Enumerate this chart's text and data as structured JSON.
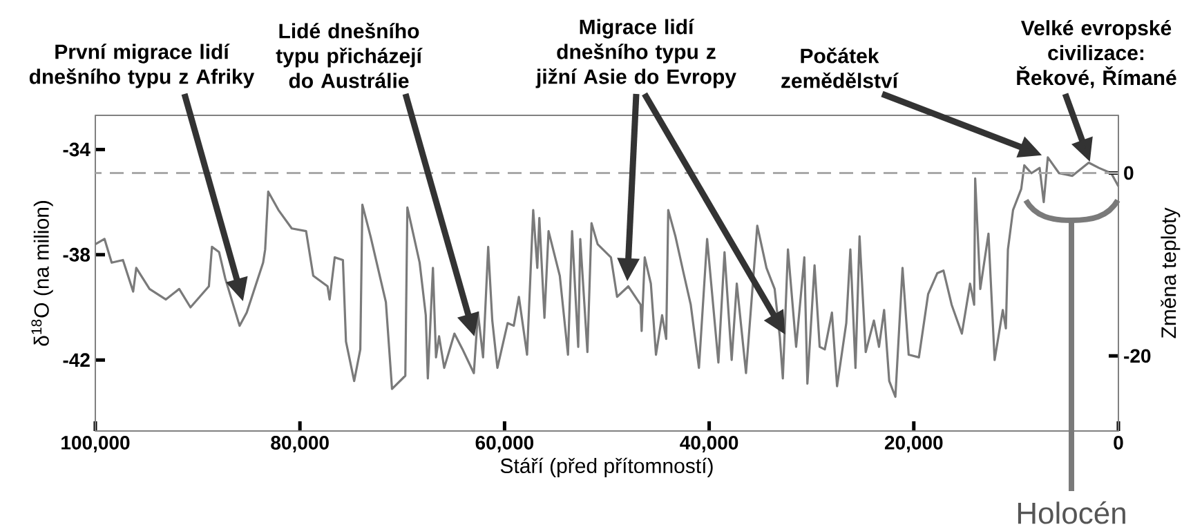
{
  "chart_data": {
    "type": "line",
    "xlabel": "Stáří (před přítomností)",
    "ylabel": "δ$^{18}$O (na milion)",
    "y2label": "Změna teploty",
    "xlim": [
      100000,
      0
    ],
    "xticks": [
      {
        "value": 100000,
        "label": "100,000"
      },
      {
        "value": 80000,
        "label": "80,000"
      },
      {
        "value": 60000,
        "label": "60,000"
      },
      {
        "value": 40000,
        "label": "40,000"
      },
      {
        "value": 20000,
        "label": "20,000"
      },
      0
    ],
    "ylim": [
      -44.7,
      -32.7
    ],
    "yticks": [
      -34,
      -38,
      -42
    ],
    "y2lim": [
      -28.2,
      6.3
    ],
    "y2ticks": [
      0,
      -20
    ],
    "x": [
      100000,
      99100,
      98400,
      97300,
      96300,
      96000,
      94700,
      93100,
      91800,
      90700,
      88900,
      88600,
      87900,
      87300,
      85900,
      85200,
      83600,
      83400,
      83100,
      82100,
      80800,
      79400,
      78700,
      77300,
      77100,
      76600,
      75800,
      75500,
      74700,
      74100,
      73900,
      73100,
      71600,
      71000,
      69700,
      69500,
      69100,
      68300,
      67700,
      67500,
      67000,
      66700,
      66400,
      65900,
      64900,
      64100,
      63000,
      62600,
      62100,
      61600,
      61200,
      60700,
      59700,
      59100,
      58600,
      57800,
      57200,
      56800,
      56600,
      56100,
      55700,
      54600,
      53800,
      53400,
      52800,
      52600,
      51900,
      51500,
      50900,
      49600,
      49000,
      47900,
      46700,
      46600,
      46300,
      45700,
      45200,
      44600,
      44200,
      44000,
      43300,
      42500,
      41800,
      41000,
      40200,
      39100,
      38500,
      37800,
      37300,
      36400,
      35300,
      34400,
      33600,
      33100,
      32800,
      32300,
      31500,
      30700,
      30400,
      29700,
      29200,
      28700,
      28000,
      27500,
      26600,
      26200,
      25700,
      25300,
      24700,
      23900,
      23400,
      22900,
      22400,
      21800,
      21100,
      20500,
      19500,
      18600,
      17700,
      17100,
      16300,
      15300,
      14500,
      14100,
      14000,
      13500,
      12700,
      12100,
      11300,
      11000,
      10800,
      10300,
      9500,
      9200,
      8500,
      7700,
      7300,
      6900,
      5800,
      4500,
      2900,
      1900,
      700,
      0
    ],
    "series": [
      {
        "color": "#7a7a7a",
        "values": [
          -37.6,
          -37.4,
          -38.3,
          -38.2,
          -39.4,
          -38.5,
          -39.3,
          -39.7,
          -39.3,
          -40.0,
          -39.2,
          -37.7,
          -37.9,
          -38.9,
          -40.7,
          -40.2,
          -38.3,
          -37.8,
          -35.6,
          -36.3,
          -37.0,
          -37.1,
          -38.8,
          -39.2,
          -39.7,
          -38.1,
          -38.2,
          -41.3,
          -42.8,
          -41.6,
          -36.1,
          -37.3,
          -39.8,
          -43.1,
          -42.6,
          -36.2,
          -36.9,
          -38.3,
          -40.3,
          -42.7,
          -38.5,
          -41.9,
          -41.1,
          -42.3,
          -41.0,
          -41.6,
          -42.5,
          -40.2,
          -41.9,
          -37.7,
          -40.5,
          -42.3,
          -40.6,
          -40.7,
          -39.6,
          -41.8,
          -36.3,
          -38.5,
          -36.6,
          -40.4,
          -37.1,
          -38.8,
          -41.8,
          -37.1,
          -41.5,
          -37.4,
          -41.7,
          -36.8,
          -37.6,
          -38.1,
          -39.6,
          -39.2,
          -39.9,
          -40.9,
          -38.1,
          -39.1,
          -41.8,
          -40.3,
          -41.2,
          -36.3,
          -37.3,
          -38.7,
          -39.9,
          -42.3,
          -37.4,
          -42.1,
          -37.9,
          -42.0,
          -39.1,
          -42.5,
          -36.9,
          -38.5,
          -39.3,
          -41.1,
          -42.7,
          -37.8,
          -41.5,
          -38.1,
          -42.9,
          -38.4,
          -41.5,
          -41.6,
          -40.2,
          -43.0,
          -40.6,
          -37.8,
          -42.3,
          -37.3,
          -41.7,
          -40.5,
          -41.5,
          -40.1,
          -42.8,
          -43.4,
          -38.5,
          -41.8,
          -41.9,
          -39.5,
          -38.7,
          -38.6,
          -39.9,
          -41.0,
          -39.1,
          -39.9,
          -35.1,
          -39.3,
          -37.2,
          -42.0,
          -40.1,
          -40.8,
          -37.8,
          -36.3,
          -35.5,
          -34.6,
          -34.9,
          -34.7,
          -36.0,
          -34.3,
          -34.9,
          -35.0,
          -34.5,
          -34.7,
          -34.9,
          -35.4
        ]
      }
    ],
    "ref_lines": [
      {
        "axis": "y2",
        "value": 0,
        "color": "#a8a8a8",
        "line_style": "dashed"
      }
    ],
    "annotations": [
      "První migrace lidí dnešního typu z Afriky",
      "Lidé dnešního typu přicházejí do Austrálie",
      "Migrace lidí dnešního typu z jižní Asie do Evropy",
      "Počátek zemědělství",
      "Velké evropské civilizace: Řekové, Římané",
      "Holocén"
    ]
  }
}
